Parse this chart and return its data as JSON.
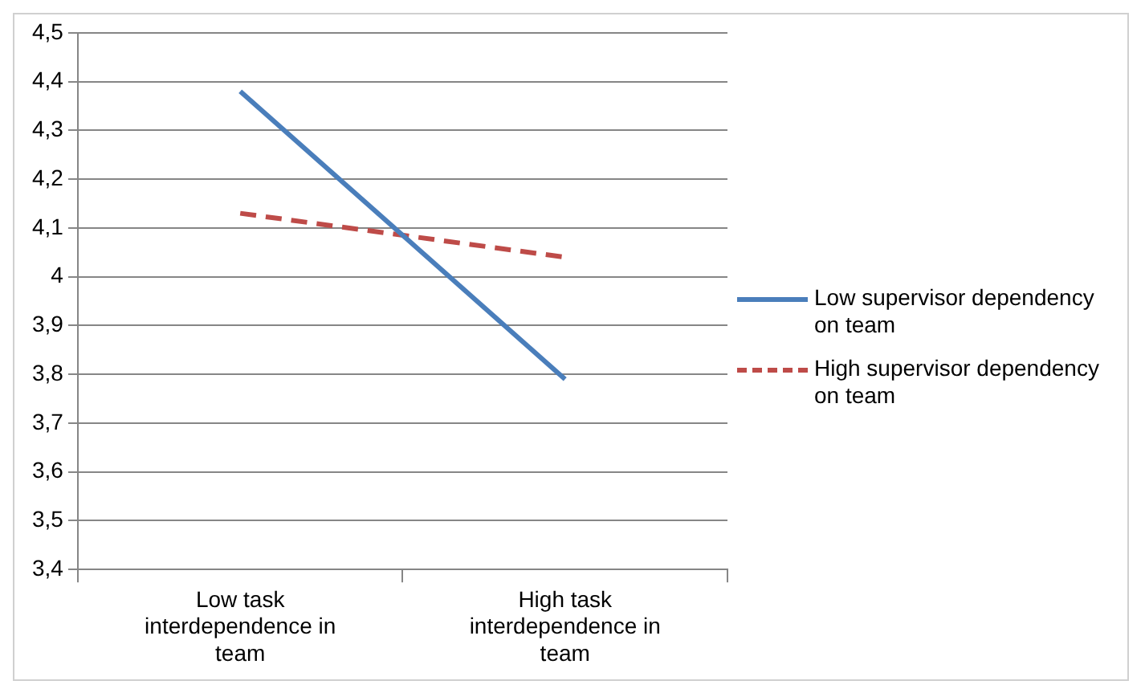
{
  "chart_data": {
    "type": "line",
    "categories": [
      "Low task interdependence in team",
      "High task interdependence in team"
    ],
    "series": [
      {
        "name": "Low supervisor dependency on team",
        "color": "#4a7ebb",
        "values": [
          4.38,
          3.79
        ],
        "line_style": "solid"
      },
      {
        "name": "High supervisor dependency on team",
        "color": "#be4b48",
        "values": [
          4.13,
          4.04
        ],
        "line_style": "dashed"
      }
    ],
    "ylim": [
      3.4,
      4.5
    ],
    "yticks": [
      {
        "value": 3.4,
        "label": "3,4"
      },
      {
        "value": 3.5,
        "label": "3,5"
      },
      {
        "value": 3.6,
        "label": "3,6"
      },
      {
        "value": 3.7,
        "label": "3,7"
      },
      {
        "value": 3.8,
        "label": "3,8"
      },
      {
        "value": 3.9,
        "label": "3,9"
      },
      {
        "value": 4,
        "label": "4"
      },
      {
        "value": 4.1,
        "label": "4,1"
      },
      {
        "value": 4.2,
        "label": "4,2"
      },
      {
        "value": 4.3,
        "label": "4,3"
      },
      {
        "value": 4.4,
        "label": "4,4"
      },
      {
        "value": 4.5,
        "label": "4,5"
      }
    ],
    "grid": "y",
    "legend": "right",
    "marker": "none"
  }
}
